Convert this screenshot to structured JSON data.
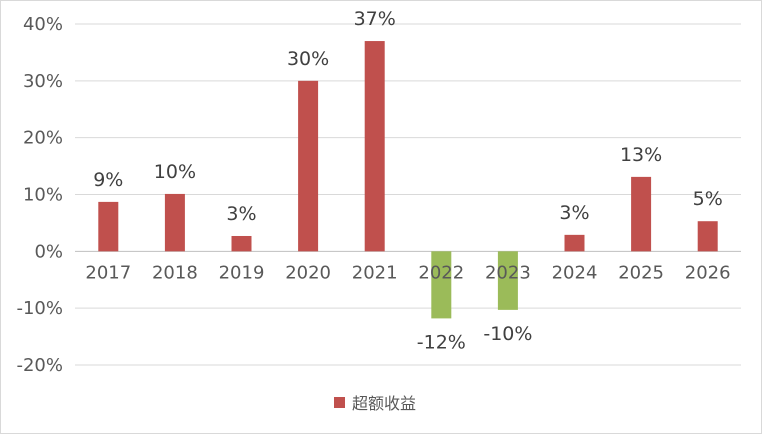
{
  "chart_data": {
    "type": "bar",
    "title": "",
    "xlabel": "",
    "ylabel": "",
    "categories": [
      "2017",
      "2018",
      "2019",
      "2020",
      "2021",
      "2022",
      "2023",
      "2024",
      "2025",
      "2026"
    ],
    "series": [
      {
        "name": "超额收益",
        "values": [
          8.7,
          10.1,
          2.7,
          30.0,
          37.0,
          -11.8,
          -10.3,
          2.9,
          13.1,
          5.3
        ],
        "labels": [
          "9%",
          "10%",
          "3%",
          "30%",
          "37%",
          "-12%",
          "-10%",
          "3%",
          "13%",
          "5%"
        ]
      }
    ],
    "ylim": [
      -20,
      40
    ],
    "yticks": [
      40,
      30,
      20,
      10,
      0,
      -10,
      -20
    ],
    "ytick_labels": [
      "40%",
      "30%",
      "20%",
      "10%",
      "0%",
      "-10%",
      "-20%"
    ],
    "grid": true,
    "legend": "bottom-center",
    "colors": {
      "positive": "#C0504D",
      "negative": "#9BBB59",
      "grid": "#d9d9d9",
      "axis": "#bfbfbf"
    }
  }
}
